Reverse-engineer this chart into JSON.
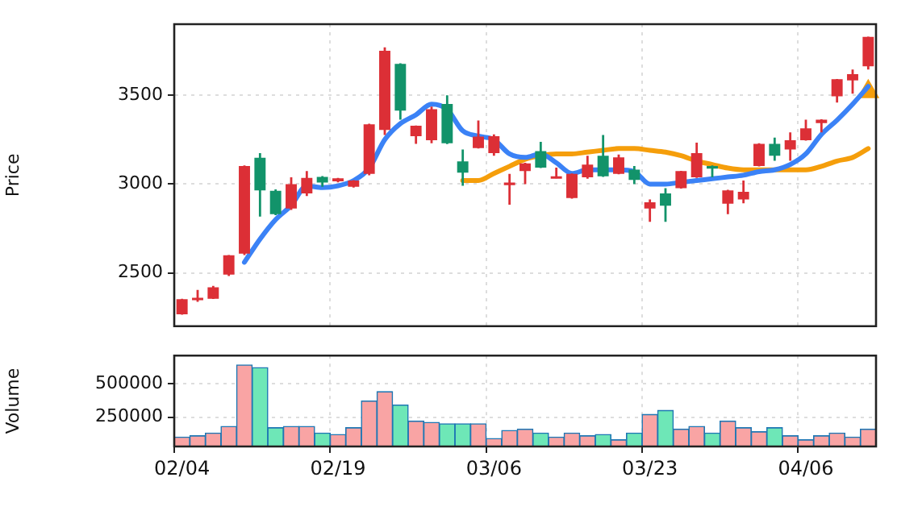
{
  "chart_data": [
    {
      "type": "candlestick",
      "ylabel": "Price",
      "ylim": [
        2200,
        3900
      ],
      "yticks": [
        2500,
        3000,
        3500
      ],
      "grid": true,
      "legend": false,
      "tick_labels": "y",
      "categories": [
        null,
        null,
        null,
        null,
        null,
        null,
        null,
        null,
        null,
        null,
        null,
        null,
        null,
        null,
        null,
        null,
        null,
        null,
        null,
        null,
        null,
        null,
        null,
        null,
        null,
        null,
        null,
        null,
        null,
        null,
        null,
        null,
        null,
        null,
        null,
        null,
        null,
        null,
        null,
        null,
        null,
        null,
        null,
        null,
        null
      ],
      "series": [
        {
          "type": "candlestick",
          "ohlc": [
            [
              2267,
              2355,
              2265,
              2352
            ],
            [
              2346,
              2404,
              2337,
              2360
            ],
            [
              2355,
              2427,
              2353,
              2419
            ],
            [
              2491,
              2600,
              2483,
              2599
            ],
            [
              2608,
              3105,
              2600,
              3102
            ],
            [
              3148,
              3174,
              2817,
              2965
            ],
            [
              2962,
              2970,
              2825,
              2831
            ],
            [
              2863,
              3038,
              2855,
              3000
            ],
            [
              2948,
              3073,
              2933,
              3035
            ],
            [
              3041,
              3045,
              2985,
              3009
            ],
            [
              3015,
              3035,
              3010,
              3032
            ],
            [
              2985,
              3022,
              2980,
              3020
            ],
            [
              3058,
              3340,
              3050,
              3337
            ],
            [
              3305,
              3770,
              3276,
              3750
            ],
            [
              3677,
              3680,
              3363,
              3413
            ],
            [
              3270,
              3330,
              3227,
              3328
            ],
            [
              3247,
              3436,
              3230,
              3422
            ],
            [
              3451,
              3500,
              3225,
              3230
            ],
            [
              3128,
              3195,
              2991,
              3064
            ],
            [
              3203,
              3358,
              3200,
              3267
            ],
            [
              3174,
              3280,
              3160,
              3270
            ],
            [
              2994,
              3058,
              2884,
              3009
            ],
            [
              3073,
              3120,
              3000,
              3116
            ],
            [
              3186,
              3238,
              3090,
              3093
            ],
            [
              3035,
              3093,
              3033,
              3044
            ],
            [
              2921,
              3060,
              2918,
              3058
            ],
            [
              3038,
              3160,
              3030,
              3110
            ],
            [
              3160,
              3276,
              3040,
              3044
            ],
            [
              3058,
              3166,
              3055,
              3151
            ],
            [
              3081,
              3102,
              3000,
              3023
            ],
            [
              2863,
              2913,
              2788,
              2898
            ],
            [
              2948,
              2977,
              2788,
              2878
            ],
            [
              2977,
              3075,
              2975,
              3073
            ],
            [
              3038,
              3233,
              3035,
              3174
            ],
            [
              3102,
              3105,
              3038,
              3087
            ],
            [
              2890,
              2968,
              2831,
              2965
            ],
            [
              2913,
              3020,
              2892,
              2956
            ],
            [
              3102,
              3230,
              3100,
              3227
            ],
            [
              3227,
              3262,
              3131,
              3160
            ],
            [
              3195,
              3291,
              3131,
              3247
            ],
            [
              3247,
              3363,
              3245,
              3314
            ],
            [
              3343,
              3365,
              3291,
              3363
            ],
            [
              3494,
              3592,
              3459,
              3590
            ],
            [
              3584,
              3645,
              3509,
              3619
            ],
            [
              3663,
              3830,
              3645,
              3828
            ]
          ],
          "colors": [
            "#dc2f36",
            "#dc2f36",
            "#dc2f36",
            "#dc2f36",
            "#dc2f36",
            "#12936a",
            "#12936a",
            "#dc2f36",
            "#dc2f36",
            "#12936a",
            "#dc2f36",
            "#dc2f36",
            "#dc2f36",
            "#dc2f36",
            "#12936a",
            "#dc2f36",
            "#dc2f36",
            "#12936a",
            "#12936a",
            "#dc2f36",
            "#dc2f36",
            "#dc2f36",
            "#dc2f36",
            "#12936a",
            "#dc2f36",
            "#dc2f36",
            "#dc2f36",
            "#12936a",
            "#dc2f36",
            "#12936a",
            "#dc2f36",
            "#12936a",
            "#dc2f36",
            "#dc2f36",
            "#12936a",
            "#dc2f36",
            "#dc2f36",
            "#dc2f36",
            "#12936a",
            "#dc2f36",
            "#dc2f36",
            "#dc2f36",
            "#dc2f36",
            "#dc2f36",
            "#dc2f36"
          ]
        },
        {
          "type": "line",
          "color": "#3b82f6",
          "values": [
            null,
            null,
            null,
            null,
            2560,
            2690,
            2800,
            2880,
            2990,
            2980,
            2990,
            3020,
            3090,
            3250,
            3340,
            3390,
            3450,
            3420,
            3300,
            3270,
            3250,
            3170,
            3150,
            3170,
            3120,
            3060,
            3080,
            3080,
            3080,
            3070,
            3000,
            3000,
            3010,
            3020,
            3030,
            3040,
            3050,
            3070,
            3080,
            3110,
            3170,
            3280,
            3360,
            3450,
            3550
          ]
        },
        {
          "type": "line",
          "color": "#f59e0b",
          "values": [
            null,
            null,
            null,
            null,
            null,
            null,
            null,
            null,
            null,
            null,
            null,
            null,
            null,
            null,
            null,
            null,
            null,
            null,
            3020,
            3020,
            3060,
            3100,
            3140,
            3160,
            3170,
            3170,
            3180,
            3190,
            3200,
            3200,
            3190,
            3180,
            3160,
            3130,
            3110,
            3090,
            3080,
            3080,
            3080,
            3080,
            3080,
            3100,
            3130,
            3150,
            3200
          ]
        },
        {
          "type": "scatter",
          "marker": "triangle",
          "color": "#f59e0b",
          "values": [
            null,
            null,
            null,
            null,
            null,
            null,
            null,
            null,
            null,
            null,
            null,
            null,
            null,
            null,
            null,
            null,
            null,
            null,
            null,
            null,
            null,
            null,
            null,
            null,
            null,
            null,
            null,
            null,
            null,
            null,
            null,
            null,
            null,
            null,
            null,
            null,
            null,
            null,
            null,
            null,
            null,
            null,
            null,
            null,
            3520
          ]
        }
      ]
    },
    {
      "type": "bar",
      "ylabel": "Volume",
      "ylim": [
        30000,
        710000
      ],
      "yticks": [
        250000,
        500000
      ],
      "grid": true,
      "legend": false,
      "categories": [
        "02/04",
        null,
        null,
        null,
        null,
        null,
        null,
        null,
        null,
        null,
        "02/19",
        null,
        null,
        null,
        null,
        null,
        null,
        null,
        null,
        null,
        "03/06",
        null,
        null,
        null,
        null,
        null,
        null,
        null,
        null,
        null,
        "03/23",
        null,
        null,
        null,
        null,
        null,
        null,
        null,
        null,
        null,
        "04/06",
        null,
        null,
        null,
        null
      ],
      "values": [
        100000,
        110000,
        130000,
        180000,
        640000,
        620000,
        170000,
        180000,
        180000,
        130000,
        120000,
        170000,
        370000,
        440000,
        340000,
        220000,
        210000,
        200000,
        200000,
        200000,
        90000,
        150000,
        160000,
        130000,
        100000,
        130000,
        110000,
        120000,
        80000,
        130000,
        270000,
        300000,
        160000,
        180000,
        130000,
        220000,
        170000,
        140000,
        170000,
        110000,
        80000,
        110000,
        130000,
        100000,
        160000
      ],
      "colors": [
        "#f9a4a4",
        "#f9a4a4",
        "#f9a4a4",
        "#f9a4a4",
        "#f9a4a4",
        "#6ee7b7",
        "#6ee7b7",
        "#f9a4a4",
        "#f9a4a4",
        "#6ee7b7",
        "#f9a4a4",
        "#f9a4a4",
        "#f9a4a4",
        "#f9a4a4",
        "#6ee7b7",
        "#f9a4a4",
        "#f9a4a4",
        "#6ee7b7",
        "#6ee7b7",
        "#f9a4a4",
        "#f9a4a4",
        "#f9a4a4",
        "#f9a4a4",
        "#6ee7b7",
        "#f9a4a4",
        "#f9a4a4",
        "#f9a4a4",
        "#6ee7b7",
        "#f9a4a4",
        "#6ee7b7",
        "#f9a4a4",
        "#6ee7b7",
        "#f9a4a4",
        "#f9a4a4",
        "#6ee7b7",
        "#f9a4a4",
        "#f9a4a4",
        "#f9a4a4",
        "#6ee7b7",
        "#f9a4a4",
        "#f9a4a4",
        "#f9a4a4",
        "#f9a4a4",
        "#f9a4a4",
        "#f9a4a4"
      ]
    }
  ]
}
